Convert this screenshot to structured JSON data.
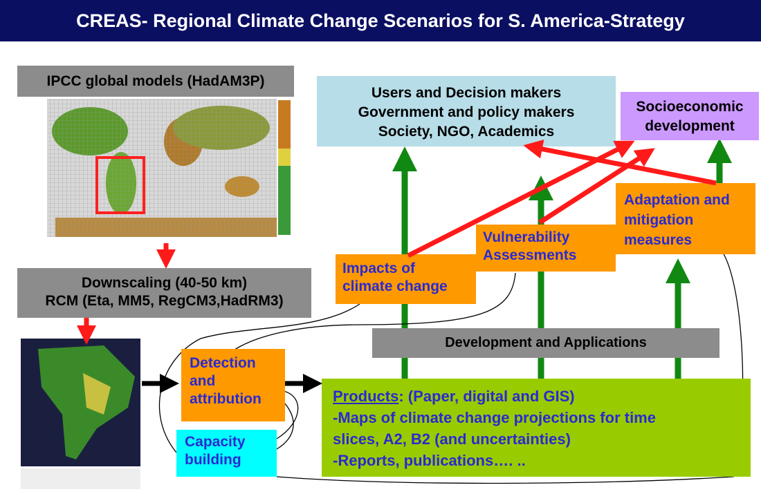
{
  "title": "CREAS- Regional Climate Change Scenarios for S. America-Strategy",
  "global_models": "IPCC global models (HadAM3P)",
  "downscaling": [
    "Downscaling (40-50 km)",
    "RCM (Eta, MM5, RegCM3,HadRM3)"
  ],
  "detection": [
    "Detection",
    "and",
    "attribution"
  ],
  "capacity": [
    "Capacity",
    "building"
  ],
  "products": {
    "heading": "Products",
    "heading_rest": ": (Paper, digital and GIS)",
    "lines": [
      "-Maps of climate change projections for time",
      "slices, A2, B2 (and uncertainties)",
      "-Reports, publications…. .."
    ]
  },
  "development": "Development and Applications",
  "impacts": [
    "Impacts of",
    "climate change"
  ],
  "vulnerability": [
    "Vulnerability",
    "Assessments"
  ],
  "adaptation": [
    "Adaptation and",
    "mitigation",
    "measures"
  ],
  "users": [
    "Users and Decision makers",
    "Government and policy makers",
    "Society, NGO, Academics"
  ],
  "socioeconomic": [
    "Socioeconomic",
    "development"
  ]
}
